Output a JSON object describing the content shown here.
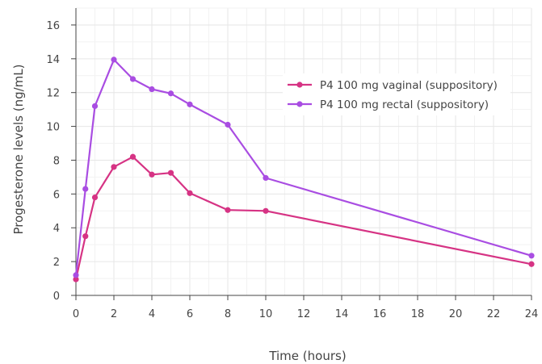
{
  "chart_data": {
    "type": "line",
    "title": "",
    "xlabel": "Time (hours)",
    "ylabel": "Progesterone levels (ng/mL)",
    "xlim": [
      0,
      24
    ],
    "ylim": [
      0,
      17
    ],
    "xticks": [
      0,
      2,
      4,
      6,
      8,
      10,
      12,
      14,
      16,
      18,
      20,
      22,
      24
    ],
    "yticks": [
      0,
      2,
      4,
      6,
      8,
      10,
      12,
      14,
      16
    ],
    "grid": true,
    "legend_position": "top-right",
    "series": [
      {
        "name": "P4 100 mg vaginal (suppository)",
        "color": "#d63384",
        "x": [
          0,
          0.5,
          1,
          2,
          3,
          4,
          5,
          6,
          8,
          10,
          24
        ],
        "y": [
          0.95,
          3.5,
          5.8,
          7.6,
          8.2,
          7.15,
          7.25,
          6.05,
          5.05,
          5.0,
          1.85
        ]
      },
      {
        "name": "P4 100 mg rectal (suppository)",
        "color": "#a94de2",
        "x": [
          0,
          0.5,
          1,
          2,
          3,
          4,
          5,
          6,
          8,
          10,
          24
        ],
        "y": [
          1.2,
          6.3,
          11.2,
          13.95,
          12.8,
          12.2,
          11.95,
          11.3,
          10.1,
          6.95,
          2.35
        ]
      }
    ]
  }
}
